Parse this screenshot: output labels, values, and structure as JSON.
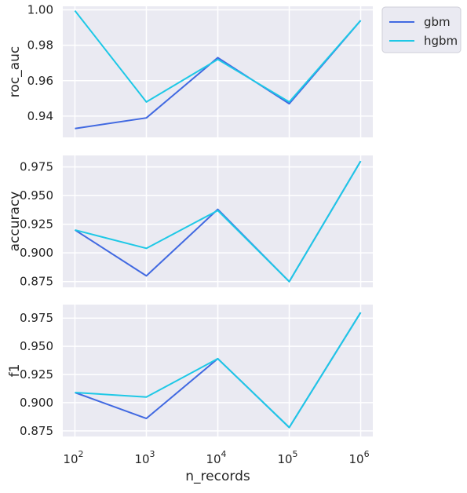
{
  "chart_data": {
    "type": "line",
    "x_scale": "log",
    "x": [
      100,
      1000,
      10000,
      100000,
      1000000
    ],
    "xlabel": "n_records",
    "x_tick_labels": [
      {
        "base": "10",
        "exp": "2"
      },
      {
        "base": "10",
        "exp": "3"
      },
      {
        "base": "10",
        "exp": "4"
      },
      {
        "base": "10",
        "exp": "5"
      },
      {
        "base": "10",
        "exp": "6"
      }
    ],
    "grid": true,
    "legend": {
      "placement": "top-right-outside",
      "entries": [
        {
          "name": "gbm",
          "color": "#4169e1"
        },
        {
          "name": "hgbm",
          "color": "#1ec8e6"
        }
      ]
    },
    "panels": [
      {
        "ylabel": "roc_auc",
        "ylim": [
          0.928,
          1.002
        ],
        "yticks": [
          0.94,
          0.96,
          0.98,
          1.0
        ],
        "ytick_labels": [
          "0.94",
          "0.96",
          "0.98",
          "1.00"
        ],
        "series": [
          {
            "name": "gbm",
            "color": "#4169e1",
            "values": [
              0.933,
              0.939,
              0.973,
              0.947,
              0.994
            ]
          },
          {
            "name": "hgbm",
            "color": "#1ec8e6",
            "values": [
              0.9995,
              0.948,
              0.972,
              0.948,
              0.994
            ]
          }
        ]
      },
      {
        "ylabel": "accuracy",
        "ylim": [
          0.87,
          0.985
        ],
        "yticks": [
          0.875,
          0.9,
          0.925,
          0.95,
          0.975
        ],
        "ytick_labels": [
          "0.875",
          "0.900",
          "0.925",
          "0.950",
          "0.975"
        ],
        "series": [
          {
            "name": "gbm",
            "color": "#4169e1",
            "values": [
              0.92,
              0.88,
              0.938,
              0.875,
              0.98
            ]
          },
          {
            "name": "hgbm",
            "color": "#1ec8e6",
            "values": [
              0.92,
              0.904,
              0.937,
              0.875,
              0.98
            ]
          }
        ]
      },
      {
        "ylabel": "f1",
        "ylim": [
          0.87,
          0.987
        ],
        "yticks": [
          0.875,
          0.9,
          0.925,
          0.95,
          0.975
        ],
        "ytick_labels": [
          "0.875",
          "0.900",
          "0.925",
          "0.950",
          "0.975"
        ],
        "series": [
          {
            "name": "gbm",
            "color": "#4169e1",
            "values": [
              0.909,
              0.886,
              0.939,
              0.878,
              0.98
            ]
          },
          {
            "name": "hgbm",
            "color": "#1ec8e6",
            "values": [
              0.909,
              0.905,
              0.939,
              0.878,
              0.98
            ]
          }
        ]
      }
    ]
  }
}
